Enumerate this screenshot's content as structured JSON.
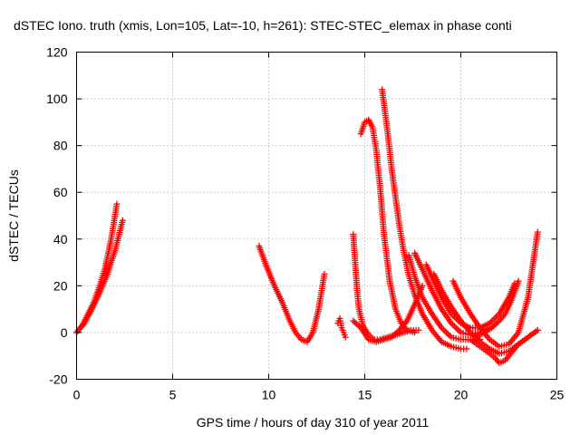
{
  "chart_data": {
    "type": "scatter",
    "title": "dSTEC Iono. truth (xmis, Lon=105, Lat=-10, h=261): STEC-STEC_elemax in phase conti",
    "xlabel": "GPS time / hours of day 310 of year 2011",
    "ylabel": "dSTEC  / TECUs",
    "xlim": [
      0,
      25
    ],
    "ylim": [
      -20,
      120
    ],
    "xticks": [
      "0",
      "5",
      "10",
      "15",
      "20",
      "25"
    ],
    "yticks": [
      "-20",
      "0",
      "20",
      "40",
      "60",
      "80",
      "100",
      "120"
    ],
    "xtick_values": [
      0,
      5,
      10,
      15,
      20,
      25
    ],
    "ytick_values": [
      -20,
      0,
      20,
      40,
      60,
      80,
      100,
      120
    ],
    "grid": true,
    "marker": "+",
    "color": "#ff0000",
    "series": [
      {
        "x": [
          0.0,
          0.3,
          0.6,
          0.9,
          1.2,
          1.5,
          1.8,
          2.1
        ],
        "y": [
          0,
          3,
          8,
          13,
          20,
          28,
          40,
          55
        ]
      },
      {
        "x": [
          0.0,
          0.4,
          0.8,
          1.2,
          1.6,
          2.0,
          2.4
        ],
        "y": [
          0,
          4,
          10,
          17,
          25,
          35,
          48
        ]
      },
      {
        "x": [
          9.5,
          9.9,
          10.3,
          10.7,
          11.1,
          11.4,
          11.7,
          12.0,
          12.3,
          12.6,
          12.9
        ],
        "y": [
          37,
          28,
          20,
          13,
          5,
          0,
          -3,
          -4,
          0,
          10,
          25
        ]
      },
      {
        "x": [
          13.6,
          13.7,
          13.8,
          13.9,
          14.0
        ],
        "y": [
          4,
          6,
          2,
          0,
          -2
        ]
      },
      {
        "x": [
          14.4,
          14.5,
          14.6,
          14.7,
          14.9,
          15.2,
          15.5,
          15.8,
          16.2,
          16.6,
          17.0,
          17.4,
          17.8
        ],
        "y": [
          42,
          30,
          18,
          10,
          3,
          -1,
          -3,
          -3,
          -2,
          -1,
          0,
          1,
          1
        ]
      },
      {
        "x": [
          14.4,
          14.8,
          15.2,
          15.6,
          16.0,
          16.4,
          16.8,
          17.2,
          17.6,
          18.0
        ],
        "y": [
          5,
          2,
          -3,
          -4,
          -3,
          -2,
          1,
          5,
          12,
          20
        ]
      },
      {
        "x": [
          14.8,
          15.0,
          15.2,
          15.4,
          15.6,
          15.8,
          16.0,
          16.3,
          16.6,
          16.9,
          17.2,
          17.6
        ],
        "y": [
          85,
          90,
          91,
          88,
          78,
          62,
          42,
          22,
          10,
          4,
          1,
          0
        ]
      },
      {
        "x": [
          15.9,
          16.0,
          16.2,
          16.4,
          16.6,
          16.8,
          17.0,
          17.3,
          17.6,
          18.0,
          18.5,
          19.0,
          19.5,
          20.0,
          20.3
        ],
        "y": [
          104,
          98,
          85,
          70,
          58,
          46,
          36,
          24,
          16,
          8,
          1,
          -4,
          -6,
          -7,
          -7
        ]
      },
      {
        "x": [
          17.3,
          17.6,
          18.0,
          18.5,
          19.0,
          19.5,
          20.0,
          20.5,
          21.0
        ],
        "y": [
          33,
          24,
          15,
          8,
          2,
          -2,
          -3,
          -3,
          -3
        ]
      },
      {
        "x": [
          17.6,
          18.0,
          18.5,
          19.0,
          19.5,
          20.0,
          20.5,
          21.0,
          21.5
        ],
        "y": [
          34,
          27,
          18,
          10,
          4,
          0,
          -1,
          0,
          2
        ]
      },
      {
        "x": [
          18.2,
          18.6,
          19.0,
          19.5,
          20.0,
          20.5,
          21.0,
          21.5,
          22.0,
          22.5,
          22.8
        ],
        "y": [
          29,
          22,
          15,
          8,
          4,
          2,
          2,
          4,
          8,
          15,
          21
        ]
      },
      {
        "x": [
          18.6,
          19.0,
          19.5,
          20.0,
          20.5,
          21.0,
          21.5,
          22.0,
          22.5,
          23.0,
          23.5,
          24.0
        ],
        "y": [
          25,
          18,
          11,
          5,
          0,
          -4,
          -7,
          -9,
          -8,
          -5,
          -2,
          1
        ]
      },
      {
        "x": [
          19.6,
          20.0,
          20.5,
          21.0,
          21.5,
          22.0,
          22.5,
          23.0,
          23.5,
          24.0
        ],
        "y": [
          22,
          15,
          8,
          2,
          -3,
          -6,
          -5,
          0,
          15,
          43
        ]
      },
      {
        "x": [
          20.5,
          21.0,
          21.5,
          21.8,
          22.0,
          22.3,
          22.6,
          23.0,
          23.5,
          24.0
        ],
        "y": [
          -3,
          -6,
          -9,
          -11,
          -13,
          -12,
          -9,
          -5,
          -2,
          1
        ]
      },
      {
        "x": [
          20.8,
          21.2,
          21.6,
          22.0,
          22.3,
          22.6,
          23.0
        ],
        "y": [
          -2,
          0,
          2,
          5,
          8,
          13,
          22
        ]
      }
    ]
  }
}
